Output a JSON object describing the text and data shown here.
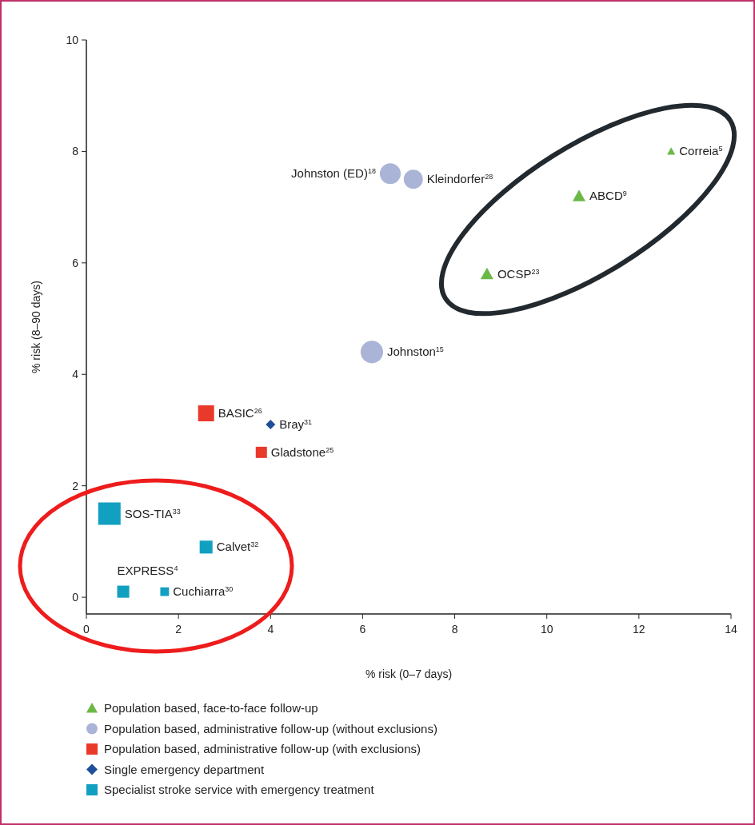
{
  "chart_data": {
    "type": "bubble",
    "xlabel": "% risk (0–7 days)",
    "ylabel": "% risk (8–90 days)",
    "xlim": [
      0,
      14
    ],
    "ylim": [
      -0.3,
      10
    ],
    "xticks": [
      0,
      2,
      4,
      6,
      8,
      10,
      12,
      14
    ],
    "yticks": [
      0,
      2,
      4,
      6,
      8,
      10
    ],
    "grid": false,
    "legend": "bottom",
    "series": [
      {
        "name": "Population based, face-to-face follow-up",
        "color": "#6cb846",
        "marker": "triangle",
        "x": [
          12.7,
          10.7,
          8.7
        ],
        "values": [
          8.0,
          7.2,
          5.8
        ],
        "sizes": [
          0.059,
          0.149,
          0.149
        ]
      },
      {
        "name": "Population based, administrative follow-up (without exclusions)",
        "color": "#aab4d6",
        "marker": "circle",
        "x": [
          6.6,
          7.1,
          6.2
        ],
        "values": [
          7.6,
          7.5,
          4.4
        ],
        "sizes": [
          0.68,
          0.57,
          0.79
        ]
      },
      {
        "name": "Population based, administrative follow-up (with exclusions)",
        "color": "#e8392a",
        "marker": "square",
        "x": [
          2.6,
          3.8
        ],
        "values": [
          3.3,
          2.6
        ],
        "sizes": [
          0.51,
          0.25
        ]
      },
      {
        "name": "Single emergency department",
        "color": "#1f4f9a",
        "marker": "diamond",
        "x": [
          4.0
        ],
        "values": [
          3.1
        ],
        "sizes": [
          0.09
        ]
      },
      {
        "name": "Specialist stroke service with emergency treatment",
        "color": "#12a0c0",
        "marker": "square",
        "x": [
          0.5,
          2.6,
          0.8,
          1.7
        ],
        "values": [
          1.5,
          0.9,
          0.1,
          0.1
        ],
        "sizes": [
          1,
          0.33,
          0.29,
          0.15
        ]
      }
    ],
    "annotations": [
      {
        "text": "Correia$^{5}$",
        "x": 12.7,
        "y": 8.0
      },
      {
        "text": "ABCD$^{9}$",
        "x": 10.7,
        "y": 7.2
      },
      {
        "text": "OCSP$^{23}$",
        "x": 8.7,
        "y": 5.8
      },
      {
        "text": "Johnston (ED)$^{18}$",
        "x": 6.6,
        "y": 7.6
      },
      {
        "text": "Kleindorfer$^{28}$",
        "x": 7.1,
        "y": 7.5
      },
      {
        "text": "Johnston$^{15}$",
        "x": 6.2,
        "y": 4.4
      },
      {
        "text": "BASIC$^{26}$",
        "x": 2.6,
        "y": 3.3
      },
      {
        "text": "Gladstone$^{25}$",
        "x": 3.8,
        "y": 2.6
      },
      {
        "text": "Bray$^{31}$",
        "x": 4.0,
        "y": 3.1
      },
      {
        "text": "SOS-TIA$^{33}$",
        "x": 0.5,
        "y": 1.5
      },
      {
        "text": "Calvet$^{32}$",
        "x": 2.6,
        "y": 0.9
      },
      {
        "text": "EXPRESS$^{4}$",
        "x": 0.8,
        "y": 0.1
      },
      {
        "text": "Cuchiarra$^{30}$",
        "x": 1.7,
        "y": 0.1
      }
    ]
  }
}
